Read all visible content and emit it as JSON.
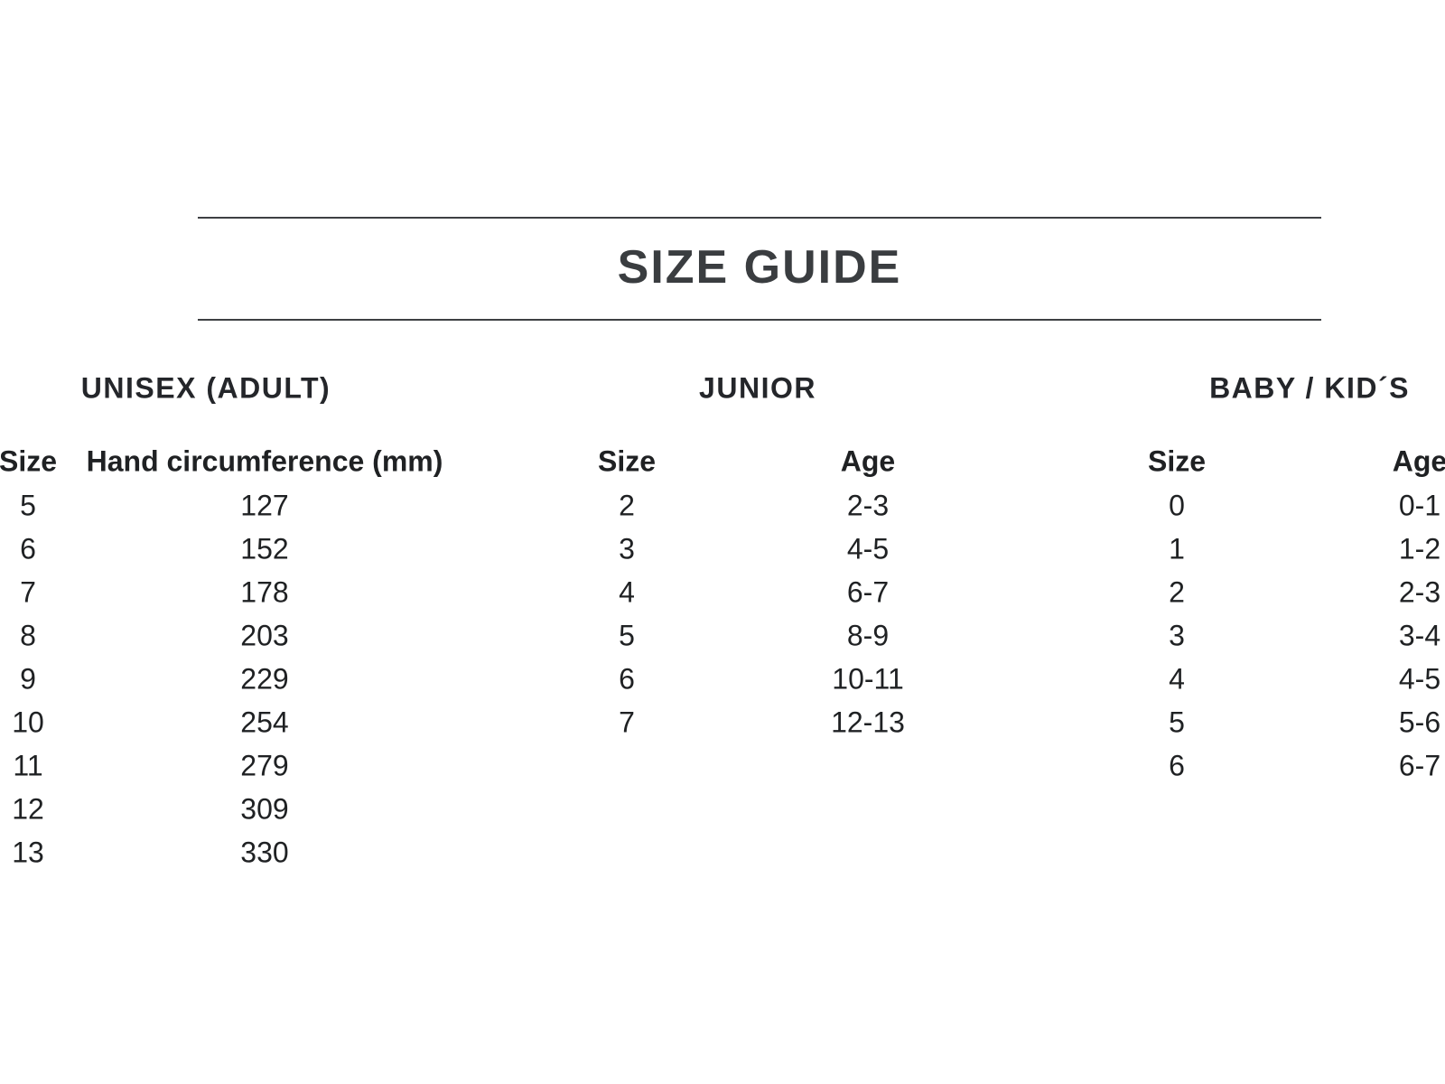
{
  "title": "SIZE GUIDE",
  "sections": [
    {
      "heading": "UNISEX (ADULT)",
      "columns": [
        "Size",
        "Hand circumference (mm)"
      ],
      "rows": [
        [
          "5",
          "127"
        ],
        [
          "6",
          "152"
        ],
        [
          "7",
          "178"
        ],
        [
          "8",
          "203"
        ],
        [
          "9",
          "229"
        ],
        [
          "10",
          "254"
        ],
        [
          "11",
          "279"
        ],
        [
          "12",
          "309"
        ],
        [
          "13",
          "330"
        ]
      ]
    },
    {
      "heading": "JUNIOR",
      "columns": [
        "Size",
        "Age"
      ],
      "rows": [
        [
          "2",
          "2-3"
        ],
        [
          "3",
          "4-5"
        ],
        [
          "4",
          "6-7"
        ],
        [
          "5",
          "8-9"
        ],
        [
          "6",
          "10-11"
        ],
        [
          "7",
          "12-13"
        ]
      ]
    },
    {
      "heading": "BABY / KID´S",
      "columns": [
        "Size",
        "Age"
      ],
      "rows": [
        [
          "0",
          "0-1"
        ],
        [
          "1",
          "1-2"
        ],
        [
          "2",
          "2-3"
        ],
        [
          "3",
          "3-4"
        ],
        [
          "4",
          "4-5"
        ],
        [
          "5",
          "5-6"
        ],
        [
          "6",
          "6-7"
        ]
      ]
    }
  ],
  "colors": {
    "text": "#1f2123",
    "title": "#3a3d40",
    "rule": "#3e4043",
    "background": "#ffffff"
  }
}
